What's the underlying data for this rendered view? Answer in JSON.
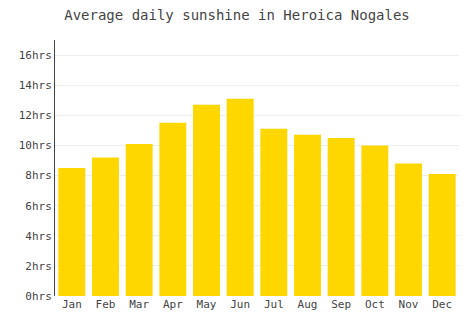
{
  "chart_data": {
    "type": "bar",
    "title": "Average daily sunshine in Heroica Nogales",
    "categories": [
      "Jan",
      "Feb",
      "Mar",
      "Apr",
      "May",
      "Jun",
      "Jul",
      "Aug",
      "Sep",
      "Oct",
      "Nov",
      "Dec"
    ],
    "values": [
      8.5,
      9.2,
      10.1,
      11.5,
      12.7,
      13.1,
      11.1,
      10.7,
      10.5,
      10.0,
      8.8,
      8.1
    ],
    "color": "#FFD700",
    "ylim": [
      0,
      17
    ],
    "yticks": [
      {
        "value": 0,
        "label": "0hrs"
      },
      {
        "value": 2,
        "label": "2hrs"
      },
      {
        "value": 4,
        "label": "4hrs"
      },
      {
        "value": 6,
        "label": "6hrs"
      },
      {
        "value": 8,
        "label": "8hrs"
      },
      {
        "value": 10,
        "label": "10hrs"
      },
      {
        "value": 12,
        "label": "12hrs"
      },
      {
        "value": 14,
        "label": "14hrs"
      },
      {
        "value": 16,
        "label": "16hrs"
      }
    ],
    "grid": true
  }
}
